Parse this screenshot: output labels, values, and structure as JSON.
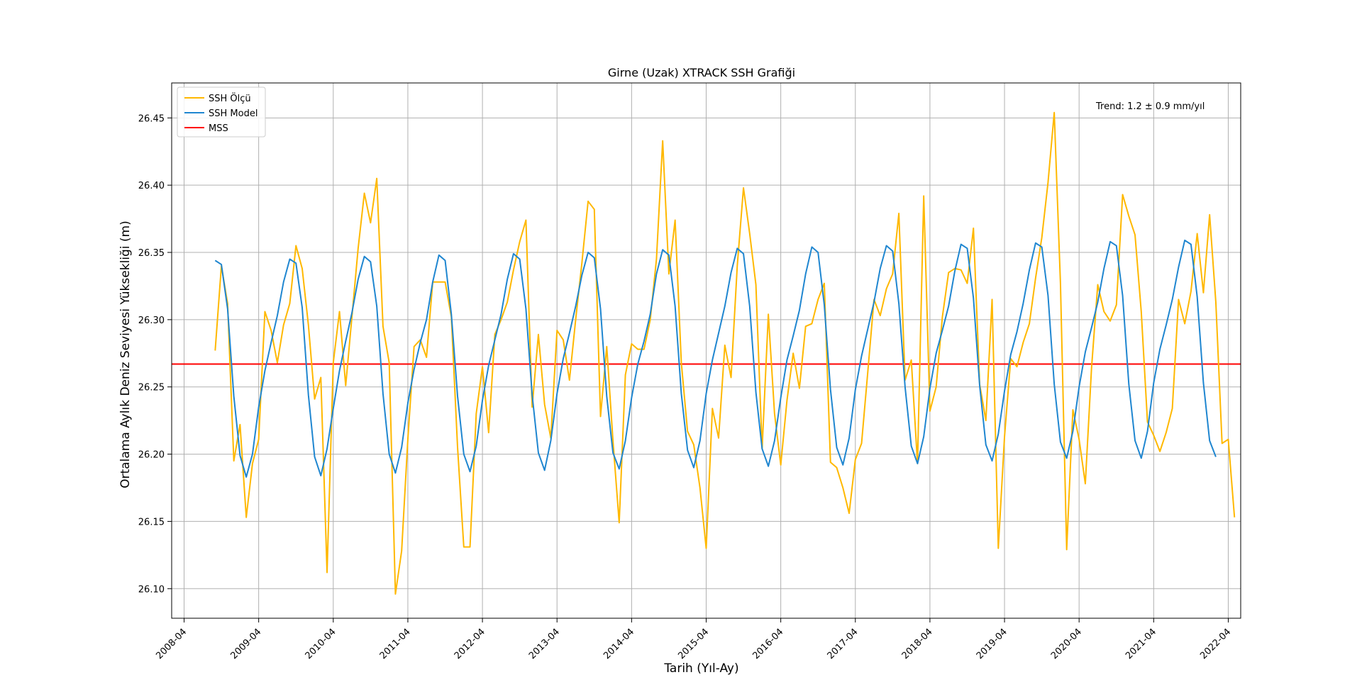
{
  "chart_data": {
    "type": "line",
    "title": "Girne (Uzak) XTRACK SSH Grafiği",
    "xlabel": "Tarih (Yıl-Ay)",
    "ylabel": "Ortalama Aylık Deniz Seviyesi Yüksekliği (m)",
    "xlim": [
      "2008-02",
      "2022-06"
    ],
    "ylim": [
      26.078,
      26.476
    ],
    "x_ticks": [
      "2008-04",
      "2009-04",
      "2010-04",
      "2011-04",
      "2012-04",
      "2013-04",
      "2014-04",
      "2015-04",
      "2016-04",
      "2017-04",
      "2018-04",
      "2019-04",
      "2020-04",
      "2021-04",
      "2022-04"
    ],
    "y_ticks": [
      26.1,
      26.15,
      26.2,
      26.25,
      26.3,
      26.35,
      26.4,
      26.45
    ],
    "grid": true,
    "legend_position": "top-left",
    "annotation": "Trend: 1.2 ± 0.9 mm/yıl",
    "mss_value": 26.267,
    "series": [
      {
        "name": "SSH Ölçü",
        "color": "#FFB800",
        "start": "2008-09",
        "values": [
          26.277,
          26.34,
          26.312,
          26.195,
          26.222,
          26.153,
          26.193,
          26.211,
          26.306,
          26.292,
          26.268,
          26.296,
          26.312,
          26.355,
          26.338,
          26.296,
          26.241,
          26.257,
          26.112,
          26.268,
          26.306,
          26.251,
          26.302,
          26.353,
          26.394,
          26.372,
          26.405,
          26.295,
          26.268,
          26.096,
          26.128,
          26.211,
          26.28,
          26.285,
          26.272,
          26.328,
          26.328,
          26.328,
          26.302,
          26.205,
          26.131,
          26.131,
          26.23,
          26.265,
          26.216,
          26.289,
          26.3,
          26.313,
          26.337,
          26.358,
          26.374,
          26.235,
          26.289,
          26.237,
          26.212,
          26.292,
          26.285,
          26.255,
          26.3,
          26.342,
          26.388,
          26.382,
          26.228,
          26.28,
          26.21,
          26.149,
          26.259,
          26.282,
          26.278,
          26.278,
          26.3,
          26.345,
          26.433,
          26.334,
          26.374,
          26.268,
          26.217,
          26.207,
          26.175,
          26.13,
          26.234,
          26.212,
          26.281,
          26.257,
          26.34,
          26.398,
          26.364,
          26.326,
          26.204,
          26.304,
          26.23,
          26.192,
          26.24,
          26.275,
          26.249,
          26.295,
          26.297,
          26.315,
          26.327,
          26.194,
          26.19,
          26.175,
          26.156,
          26.196,
          26.208,
          26.261,
          26.315,
          26.303,
          26.323,
          26.334,
          26.379,
          26.255,
          26.27,
          26.193,
          26.392,
          26.232,
          26.25,
          26.302,
          26.335,
          26.338,
          26.337,
          26.327,
          26.368,
          26.252,
          26.225,
          26.315,
          26.13,
          26.213,
          26.271,
          26.265,
          26.283,
          26.297,
          26.331,
          26.361,
          26.402,
          26.454,
          26.327,
          26.129,
          26.233,
          26.211,
          26.178,
          26.264,
          26.326,
          26.306,
          26.299,
          26.311,
          26.393,
          26.377,
          26.363,
          26.306,
          26.224,
          26.214,
          26.202,
          26.216,
          26.234,
          26.315,
          26.297,
          26.321,
          26.364,
          26.32,
          26.378,
          26.313,
          26.208,
          26.211,
          26.153
        ]
      },
      {
        "name": "SSH Model",
        "color": "#1F86D0",
        "start": "2008-09",
        "values": [
          26.344,
          26.341,
          26.308,
          26.243,
          26.199,
          26.183,
          26.2,
          26.235,
          26.262,
          26.283,
          26.303,
          26.328,
          26.345,
          26.342,
          26.309,
          26.244,
          26.198,
          26.184,
          26.204,
          26.234,
          26.262,
          26.284,
          26.305,
          26.33,
          26.347,
          26.343,
          26.31,
          26.245,
          26.2,
          26.186,
          26.205,
          26.238,
          26.263,
          26.283,
          26.3,
          26.328,
          26.348,
          26.344,
          26.304,
          26.243,
          26.2,
          26.187,
          26.206,
          26.24,
          26.266,
          26.285,
          26.304,
          26.33,
          26.349,
          26.345,
          26.308,
          26.244,
          26.201,
          26.188,
          26.21,
          26.245,
          26.271,
          26.29,
          26.31,
          26.333,
          26.35,
          26.346,
          26.308,
          26.243,
          26.201,
          26.189,
          26.21,
          26.242,
          26.267,
          26.284,
          26.304,
          26.334,
          26.352,
          26.348,
          26.31,
          26.245,
          26.203,
          26.19,
          26.21,
          26.245,
          26.27,
          26.29,
          26.31,
          26.335,
          26.353,
          26.349,
          26.31,
          26.246,
          26.204,
          26.191,
          26.21,
          26.242,
          26.27,
          26.288,
          26.307,
          26.334,
          26.354,
          26.35,
          26.311,
          26.248,
          26.205,
          26.192,
          26.212,
          26.248,
          26.273,
          26.293,
          26.313,
          26.338,
          26.355,
          26.351,
          26.312,
          26.25,
          26.206,
          26.193,
          26.213,
          26.249,
          26.275,
          26.292,
          26.31,
          26.336,
          26.356,
          26.353,
          26.316,
          26.251,
          26.207,
          26.195,
          26.215,
          26.247,
          26.274,
          26.291,
          26.312,
          26.337,
          26.357,
          26.354,
          26.318,
          26.252,
          26.209,
          26.197,
          26.217,
          26.25,
          26.276,
          26.294,
          26.313,
          26.338,
          26.358,
          26.355,
          26.318,
          26.252,
          26.21,
          26.197,
          26.217,
          26.253,
          26.278,
          26.296,
          26.315,
          26.339,
          26.359,
          26.356,
          26.317,
          26.253,
          26.21,
          26.198
        ]
      },
      {
        "name": "MSS",
        "color": "#FF0000"
      }
    ]
  }
}
